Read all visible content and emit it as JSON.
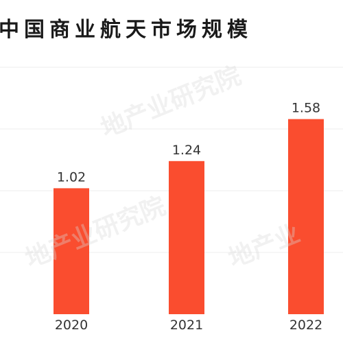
{
  "chart_data": {
    "type": "bar",
    "title": "中国商业航天市场规模",
    "categories": [
      "2020",
      "2021",
      "2022"
    ],
    "values": [
      1.02,
      1.24,
      1.58
    ],
    "value_labels": [
      "1.02",
      "1.24",
      "1.58"
    ],
    "ylim": [
      0,
      2.0
    ],
    "grid": true,
    "legend": "none"
  },
  "colors": {
    "bar": "#fa4d2f",
    "grid": "#ececec",
    "text": "#333333",
    "title": "#1a1a1a"
  }
}
